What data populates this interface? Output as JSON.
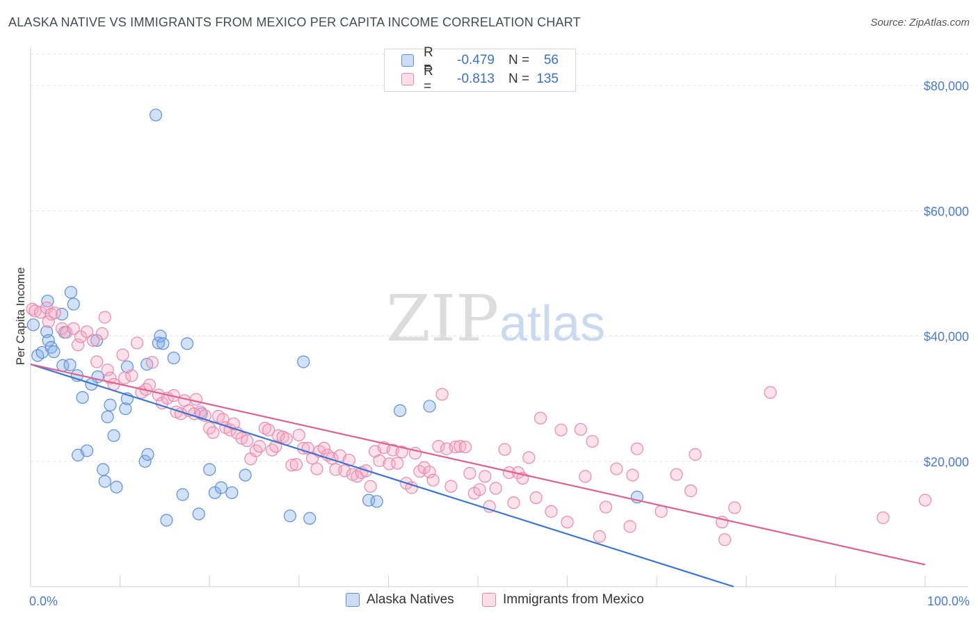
{
  "title": "ALASKA NATIVE VS IMMIGRANTS FROM MEXICO PER CAPITA INCOME CORRELATION CHART",
  "source": "Source: ZipAtlas.com",
  "watermark": {
    "zip": "ZIP",
    "atlas": "atlas"
  },
  "legend": {
    "rows": [
      {
        "r_label": "R =",
        "r_value": "-0.479",
        "n_label": "N =",
        "n_value": "56",
        "color": "#7aa8e8"
      },
      {
        "r_label": "R =",
        "r_value": "-0.813",
        "n_label": "N =",
        "n_value": "135",
        "color": "#f08fb0"
      }
    ]
  },
  "chart_data": {
    "type": "scatter",
    "xlabel": "",
    "ylabel": "Per Capita Income",
    "xlim": [
      0,
      100
    ],
    "ylim": [
      0,
      85000
    ],
    "y_ticks": [
      20000,
      40000,
      60000,
      80000
    ],
    "y_tick_labels": [
      "$20,000",
      "$40,000",
      "$60,000",
      "$80,000"
    ],
    "x_tick_labels": [
      "0.0%",
      "100.0%"
    ],
    "series": [
      {
        "name": "Alaska Natives",
        "color": "#7aa8e8",
        "stroke": "#5b8fd9",
        "trend": {
          "x0": 0,
          "y0": 35500,
          "x1": 78.6,
          "y1": 0,
          "color": "#3a75d4"
        },
        "points": [
          [
            0.3,
            41800
          ],
          [
            0.8,
            36900
          ],
          [
            1.3,
            37400
          ],
          [
            1.8,
            40700
          ],
          [
            1.9,
            45600
          ],
          [
            2.0,
            39300
          ],
          [
            2.3,
            38200
          ],
          [
            2.6,
            37500
          ],
          [
            3.5,
            43500
          ],
          [
            3.8,
            40600
          ],
          [
            3.6,
            35300
          ],
          [
            4.5,
            47000
          ],
          [
            4.8,
            45100
          ],
          [
            4.4,
            35400
          ],
          [
            5.2,
            33700
          ],
          [
            5.3,
            21000
          ],
          [
            5.8,
            30200
          ],
          [
            6.3,
            21700
          ],
          [
            6.8,
            32300
          ],
          [
            7.4,
            39300
          ],
          [
            7.5,
            33500
          ],
          [
            8.1,
            18700
          ],
          [
            8.3,
            16800
          ],
          [
            8.6,
            27100
          ],
          [
            8.9,
            29000
          ],
          [
            9.3,
            24100
          ],
          [
            9.6,
            15900
          ],
          [
            10.6,
            28400
          ],
          [
            10.8,
            30000
          ],
          [
            10.8,
            35100
          ],
          [
            12.8,
            20000
          ],
          [
            13.1,
            21100
          ],
          [
            13.0,
            35500
          ],
          [
            14.0,
            75300
          ],
          [
            14.3,
            38900
          ],
          [
            14.5,
            40000
          ],
          [
            14.8,
            38800
          ],
          [
            15.2,
            10600
          ],
          [
            16.0,
            36500
          ],
          [
            17.0,
            14700
          ],
          [
            17.5,
            38800
          ],
          [
            18.8,
            11600
          ],
          [
            19.1,
            27600
          ],
          [
            20.0,
            18700
          ],
          [
            20.6,
            15000
          ],
          [
            21.3,
            15800
          ],
          [
            22.5,
            15000
          ],
          [
            24.0,
            17800
          ],
          [
            29.0,
            11300
          ],
          [
            30.5,
            35900
          ],
          [
            31.2,
            10900
          ],
          [
            37.8,
            13800
          ],
          [
            38.7,
            13600
          ],
          [
            41.3,
            28100
          ],
          [
            44.6,
            28800
          ],
          [
            67.8,
            14300
          ]
        ]
      },
      {
        "name": "Immigrants from Mexico",
        "color": "#f5a9c3",
        "stroke": "#ec87a8",
        "trend": {
          "x0": 0,
          "y0": 35500,
          "x1": 100,
          "y1": 3500,
          "color": "#e0608e"
        },
        "points": [
          [
            0.2,
            44300
          ],
          [
            0.5,
            44000
          ],
          [
            1.1,
            43800
          ],
          [
            1.8,
            44500
          ],
          [
            2.0,
            42300
          ],
          [
            2.3,
            43500
          ],
          [
            2.7,
            43700
          ],
          [
            3.5,
            41200
          ],
          [
            4.0,
            40600
          ],
          [
            4.8,
            41200
          ],
          [
            5.3,
            38600
          ],
          [
            5.6,
            39900
          ],
          [
            6.3,
            40700
          ],
          [
            7.0,
            39300
          ],
          [
            7.4,
            35900
          ],
          [
            8.0,
            40400
          ],
          [
            8.3,
            43000
          ],
          [
            8.6,
            34600
          ],
          [
            8.9,
            33300
          ],
          [
            9.3,
            32300
          ],
          [
            10.3,
            37000
          ],
          [
            10.5,
            33300
          ],
          [
            11.3,
            33700
          ],
          [
            11.9,
            38900
          ],
          [
            12.4,
            31000
          ],
          [
            12.9,
            31500
          ],
          [
            13.3,
            32200
          ],
          [
            13.6,
            35800
          ],
          [
            14.3,
            30600
          ],
          [
            14.7,
            29300
          ],
          [
            15.3,
            30100
          ],
          [
            16.0,
            30500
          ],
          [
            16.3,
            27900
          ],
          [
            16.8,
            27600
          ],
          [
            17.2,
            29700
          ],
          [
            17.7,
            28100
          ],
          [
            18.3,
            27600
          ],
          [
            18.5,
            29900
          ],
          [
            19.0,
            27900
          ],
          [
            19.5,
            27300
          ],
          [
            20.0,
            25300
          ],
          [
            20.4,
            24600
          ],
          [
            21.0,
            27200
          ],
          [
            21.5,
            26700
          ],
          [
            21.8,
            25400
          ],
          [
            22.3,
            25000
          ],
          [
            22.7,
            26000
          ],
          [
            23.1,
            24500
          ],
          [
            23.6,
            23700
          ],
          [
            24.2,
            23300
          ],
          [
            24.6,
            20400
          ],
          [
            25.2,
            21700
          ],
          [
            25.6,
            22400
          ],
          [
            26.2,
            25300
          ],
          [
            26.6,
            25000
          ],
          [
            27.0,
            21800
          ],
          [
            27.4,
            22400
          ],
          [
            27.7,
            24100
          ],
          [
            28.2,
            23900
          ],
          [
            28.6,
            23600
          ],
          [
            29.2,
            19400
          ],
          [
            29.7,
            19500
          ],
          [
            30.0,
            24200
          ],
          [
            30.5,
            22100
          ],
          [
            31.0,
            22100
          ],
          [
            31.5,
            20500
          ],
          [
            32.0,
            18800
          ],
          [
            32.3,
            21600
          ],
          [
            32.8,
            22100
          ],
          [
            33.2,
            21000
          ],
          [
            33.7,
            20500
          ],
          [
            34.1,
            18700
          ],
          [
            34.6,
            20900
          ],
          [
            35.1,
            18500
          ],
          [
            35.6,
            20200
          ],
          [
            36.0,
            17900
          ],
          [
            36.5,
            17600
          ],
          [
            37.0,
            18200
          ],
          [
            37.5,
            18500
          ],
          [
            38.0,
            16000
          ],
          [
            38.5,
            21600
          ],
          [
            39.0,
            20100
          ],
          [
            39.5,
            22200
          ],
          [
            40.1,
            19600
          ],
          [
            40.5,
            21800
          ],
          [
            41.0,
            19700
          ],
          [
            41.5,
            21500
          ],
          [
            42.0,
            16500
          ],
          [
            42.6,
            15800
          ],
          [
            43.0,
            21300
          ],
          [
            43.5,
            18400
          ],
          [
            44.0,
            19000
          ],
          [
            44.6,
            18300
          ],
          [
            45.0,
            17000
          ],
          [
            45.6,
            22400
          ],
          [
            46.0,
            30700
          ],
          [
            46.5,
            22000
          ],
          [
            47.0,
            16000
          ],
          [
            47.5,
            22300
          ],
          [
            48.0,
            22400
          ],
          [
            48.6,
            22300
          ],
          [
            49.1,
            18100
          ],
          [
            49.6,
            14900
          ],
          [
            50.2,
            15500
          ],
          [
            50.8,
            17600
          ],
          [
            51.3,
            12800
          ],
          [
            52.0,
            15700
          ],
          [
            53.0,
            21900
          ],
          [
            53.5,
            18200
          ],
          [
            54.0,
            13400
          ],
          [
            54.5,
            18200
          ],
          [
            55.0,
            17300
          ],
          [
            55.7,
            20600
          ],
          [
            56.5,
            14200
          ],
          [
            57.0,
            26900
          ],
          [
            58.2,
            12000
          ],
          [
            59.3,
            25000
          ],
          [
            60.0,
            10300
          ],
          [
            61.5,
            25100
          ],
          [
            62.0,
            17600
          ],
          [
            62.8,
            23200
          ],
          [
            63.6,
            8000
          ],
          [
            64.3,
            12700
          ],
          [
            65.5,
            18800
          ],
          [
            67.0,
            9600
          ],
          [
            67.3,
            17800
          ],
          [
            67.8,
            22000
          ],
          [
            70.5,
            12000
          ],
          [
            72.2,
            17900
          ],
          [
            73.8,
            15300
          ],
          [
            74.3,
            21100
          ],
          [
            77.3,
            10300
          ],
          [
            77.6,
            7500
          ],
          [
            78.7,
            12600
          ],
          [
            82.7,
            31000
          ],
          [
            95.3,
            11000
          ],
          [
            100.0,
            13800
          ]
        ]
      }
    ]
  }
}
